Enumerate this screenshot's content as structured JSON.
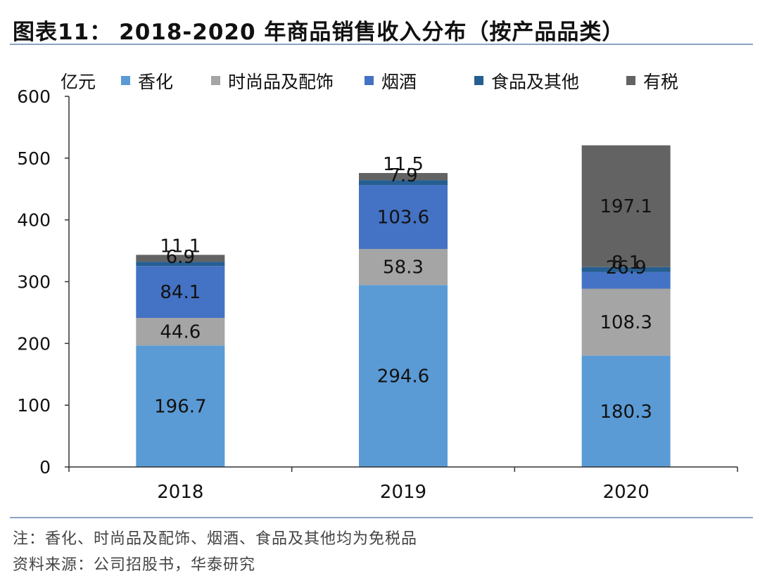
{
  "header": {
    "figure_no": "图表11：",
    "title": "2018-2020 年商品销售收入分布（按产品品类）"
  },
  "footer": {
    "note": "注：香化、时尚品及配饰、烟酒、食品及其他均为免税品",
    "source": "资料来源：公司招股书，华泰研究"
  },
  "chart_data": {
    "type": "bar",
    "stacked": true,
    "unit_label": "亿元",
    "categories": [
      "2018",
      "2019",
      "2020"
    ],
    "ylim": [
      0,
      600
    ],
    "yticks": [
      "0",
      "100",
      "200",
      "300",
      "400",
      "500",
      "600"
    ],
    "legend_position": "top",
    "series": [
      {
        "name": "香化",
        "color": "#5b9bd5",
        "values": [
          196.7,
          294.6,
          180.3
        ],
        "labels": [
          "196.7",
          "294.6",
          "180.3"
        ]
      },
      {
        "name": "时尚品及配饰",
        "color": "#a5a5a5",
        "values": [
          44.6,
          58.3,
          108.3
        ],
        "labels": [
          "44.6",
          "58.3",
          "108.3"
        ]
      },
      {
        "name": "烟酒",
        "color": "#4472c4",
        "values": [
          84.1,
          103.6,
          26.9
        ],
        "labels": [
          "84.1",
          "103.6",
          "26.9"
        ]
      },
      {
        "name": "食品及其他",
        "color": "#255e91",
        "values": [
          6.9,
          7.9,
          8.1
        ],
        "labels": [
          "6.9",
          "7.9",
          "8.1"
        ]
      },
      {
        "name": "有税",
        "color": "#636363",
        "values": [
          11.1,
          11.5,
          197.1
        ],
        "labels": [
          "11.1",
          "11.5",
          "197.1"
        ]
      }
    ]
  }
}
